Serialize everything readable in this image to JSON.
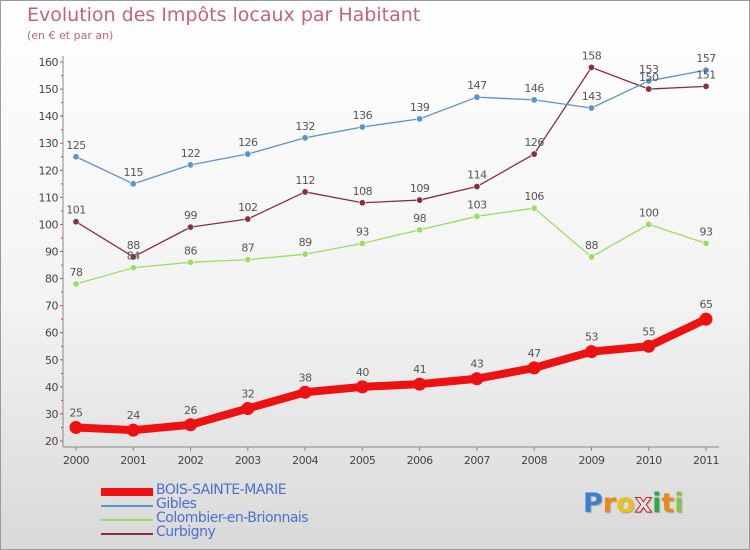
{
  "title": "Evolution des Impôts locaux par Habitant",
  "subtitle": "(en € et par an)",
  "logo": {
    "text": "Proxiti",
    "letters": [
      {
        "ch": "P",
        "color": "#3a7fd0"
      },
      {
        "ch": "r",
        "color": "#e88a1a"
      },
      {
        "ch": "o",
        "color": "#e8c41a"
      },
      {
        "ch": "x",
        "color": "#e8e8e8"
      },
      {
        "ch": "i",
        "color": "#2aa84a"
      },
      {
        "ch": "t",
        "color": "#e88a1a"
      },
      {
        "ch": "i",
        "color": "#8bc34a"
      }
    ]
  },
  "chart_data": {
    "type": "line",
    "title": "Evolution des Impôts locaux par Habitant",
    "subtitle": "(en € et par an)",
    "xlabel": "",
    "ylabel": "",
    "categories": [
      "2000",
      "2001",
      "2002",
      "2003",
      "2004",
      "2005",
      "2006",
      "2007",
      "2008",
      "2009",
      "2010",
      "2011"
    ],
    "ylim": [
      20,
      160
    ],
    "yticks": [
      20,
      30,
      40,
      50,
      60,
      70,
      80,
      90,
      100,
      110,
      120,
      130,
      140,
      150,
      160
    ],
    "grid": false,
    "legend_position": "bottom-left",
    "series": [
      {
        "name": "BOIS-SAINTE-MARIE",
        "color": "#ee1111",
        "emphasis": true,
        "values": [
          25,
          24,
          26,
          32,
          38,
          40,
          41,
          43,
          47,
          53,
          55,
          65
        ]
      },
      {
        "name": "Gibles",
        "color": "#5b93cf",
        "emphasis": false,
        "values": [
          125,
          115,
          122,
          126,
          132,
          136,
          139,
          147,
          146,
          143,
          153,
          157
        ]
      },
      {
        "name": "Colombier-en-Brionnais",
        "color": "#99dd66",
        "emphasis": false,
        "values": [
          78,
          84,
          86,
          87,
          89,
          93,
          98,
          103,
          106,
          88,
          100,
          93
        ]
      },
      {
        "name": "Curbigny",
        "color": "#8a2f35",
        "emphasis": false,
        "values": [
          101,
          88,
          99,
          102,
          112,
          108,
          109,
          114,
          126,
          158,
          150,
          151
        ]
      }
    ]
  }
}
